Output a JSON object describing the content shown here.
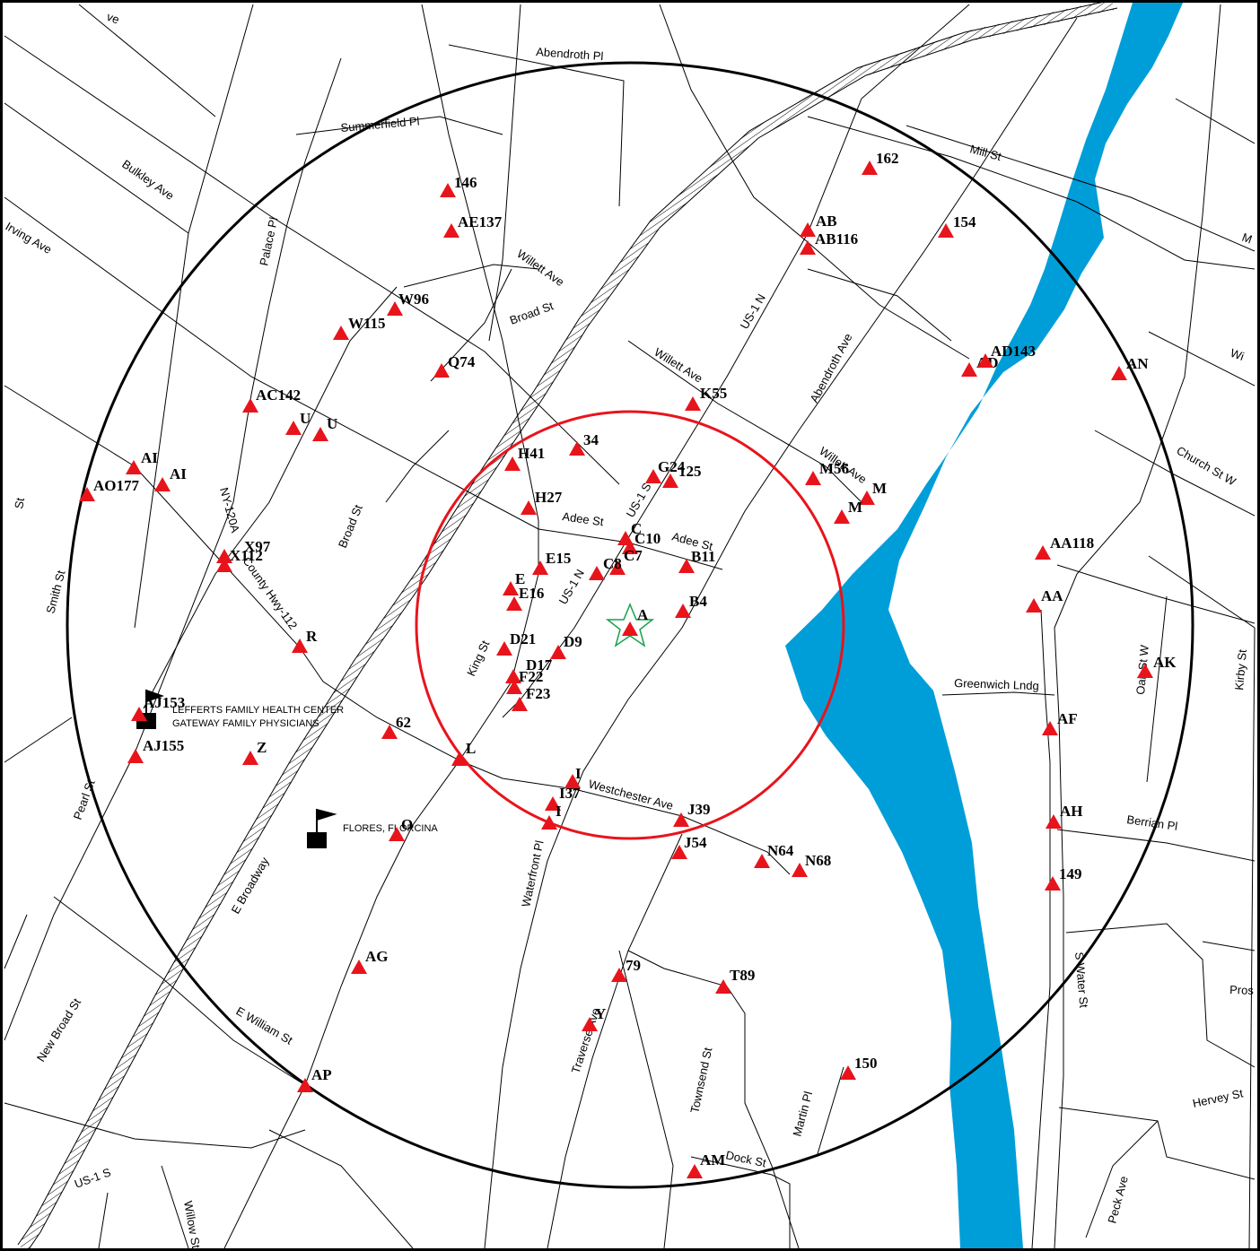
{
  "colors": {
    "water": "#009ed8",
    "site_marker": "#e8141c",
    "inner_radius": "#e8141c",
    "outer_radius": "#000000",
    "target_star": "#19a04b",
    "roads": "#000000"
  },
  "icons": {
    "site_marker": "red-triangle-icon",
    "target": "green-star-icon",
    "facility": "flag-icon"
  },
  "streets": [
    {
      "id": "ve",
      "text": "ve"
    },
    {
      "id": "abendroth-pl",
      "text": "Abendroth Pl"
    },
    {
      "id": "summerfield-pl",
      "text": "Summerfield Pl"
    },
    {
      "id": "bulkley-ave",
      "text": "Bulkley Ave"
    },
    {
      "id": "irving-ave",
      "text": "Irving Ave"
    },
    {
      "id": "palace-pl",
      "text": "Palace Pl"
    },
    {
      "id": "willett-ave-1",
      "text": "Willett Ave"
    },
    {
      "id": "broad-st-1",
      "text": "Broad St"
    },
    {
      "id": "mill-st",
      "text": "Mill St"
    },
    {
      "id": "m-edge",
      "text": "M"
    },
    {
      "id": "us1n-1",
      "text": "US-1 N"
    },
    {
      "id": "abendroth-ave",
      "text": "Abendroth Ave"
    },
    {
      "id": "willett-ave-2",
      "text": "Willett Ave"
    },
    {
      "id": "wi-edge",
      "text": "Wi"
    },
    {
      "id": "church-st-w",
      "text": "Church St W"
    },
    {
      "id": "willett-ave-3",
      "text": "Willett Ave"
    },
    {
      "id": "st-edge",
      "text": "St"
    },
    {
      "id": "smith-st",
      "text": "Smith St"
    },
    {
      "id": "ny-120a",
      "text": "NY-120A"
    },
    {
      "id": "broad-st-2",
      "text": "Broad St"
    },
    {
      "id": "us1s-1",
      "text": "US-1 S"
    },
    {
      "id": "adee-st-1",
      "text": "Adee St"
    },
    {
      "id": "adee-st-2",
      "text": "Adee St"
    },
    {
      "id": "county-hwy",
      "text": "County Hwy-112"
    },
    {
      "id": "us1n-2",
      "text": "US-1 N"
    },
    {
      "id": "king-st",
      "text": "King St"
    },
    {
      "id": "greenwich-lndg",
      "text": "Greenwich Lndg"
    },
    {
      "id": "oak-st-w",
      "text": "Oak St W"
    },
    {
      "id": "kirby-st",
      "text": "Kirby St"
    },
    {
      "id": "pearl-st",
      "text": "Pearl St"
    },
    {
      "id": "westchester-ave",
      "text": "Westchester Ave"
    },
    {
      "id": "berrian-pl",
      "text": "Berrian Pl"
    },
    {
      "id": "e-broadway",
      "text": "E Broadway"
    },
    {
      "id": "waterfront-pl",
      "text": "Waterfront Pl"
    },
    {
      "id": "new-broad-st",
      "text": "New Broad St"
    },
    {
      "id": "s-water-st",
      "text": "S Water St"
    },
    {
      "id": "pros",
      "text": "Pros"
    },
    {
      "id": "e-william-st",
      "text": "E William St"
    },
    {
      "id": "traverse-ave",
      "text": "Traverse Ave"
    },
    {
      "id": "townsend-st",
      "text": "Townsend St"
    },
    {
      "id": "martin-pl",
      "text": "Martin Pl"
    },
    {
      "id": "hervey-st",
      "text": "Hervey St"
    },
    {
      "id": "dock-st",
      "text": "Dock St"
    },
    {
      "id": "peck-ave",
      "text": "Peck Ave"
    },
    {
      "id": "us1s-2",
      "text": "US-1 S"
    },
    {
      "id": "willow-st",
      "text": "Willow St"
    }
  ],
  "sites": [
    {
      "id": "146",
      "text": "146"
    },
    {
      "id": "AE137",
      "text": "AE137"
    },
    {
      "id": "162",
      "text": "162"
    },
    {
      "id": "AB",
      "text": "AB"
    },
    {
      "id": "AB116",
      "text": "AB116"
    },
    {
      "id": "154",
      "text": "154"
    },
    {
      "id": "W96",
      "text": "W96"
    },
    {
      "id": "W115",
      "text": "W115"
    },
    {
      "id": "Q74",
      "text": "Q74"
    },
    {
      "id": "AD",
      "text": "AD"
    },
    {
      "id": "AD143",
      "text": "AD143"
    },
    {
      "id": "AN",
      "text": "AN"
    },
    {
      "id": "AC142",
      "text": "AC142"
    },
    {
      "id": "K55",
      "text": "K55"
    },
    {
      "id": "U1",
      "text": "U"
    },
    {
      "id": "U2",
      "text": "U"
    },
    {
      "id": "H41",
      "text": "H41"
    },
    {
      "id": "34",
      "text": "34"
    },
    {
      "id": "AI1",
      "text": "AI"
    },
    {
      "id": "AI2",
      "text": "AI"
    },
    {
      "id": "AO177",
      "text": "AO177"
    },
    {
      "id": "G24",
      "text": "G24"
    },
    {
      "id": "125",
      "text": "125"
    },
    {
      "id": "M56",
      "text": "M56"
    },
    {
      "id": "M1",
      "text": "M"
    },
    {
      "id": "M2",
      "text": "M"
    },
    {
      "id": "H27",
      "text": "H27"
    },
    {
      "id": "C",
      "text": "C"
    },
    {
      "id": "C10",
      "text": "C10"
    },
    {
      "id": "X97",
      "text": "X97"
    },
    {
      "id": "X112",
      "text": "X112"
    },
    {
      "id": "AA118",
      "text": "AA118"
    },
    {
      "id": "E15",
      "text": "E15"
    },
    {
      "id": "C7",
      "text": "C7"
    },
    {
      "id": "C8",
      "text": "C8"
    },
    {
      "id": "B11",
      "text": "B11"
    },
    {
      "id": "E",
      "text": "E"
    },
    {
      "id": "E16",
      "text": "E16"
    },
    {
      "id": "AA",
      "text": "AA"
    },
    {
      "id": "B4",
      "text": "B4"
    },
    {
      "id": "A",
      "text": "A"
    },
    {
      "id": "R",
      "text": "R"
    },
    {
      "id": "D21",
      "text": "D21"
    },
    {
      "id": "D9",
      "text": "D9"
    },
    {
      "id": "AK",
      "text": "AK"
    },
    {
      "id": "D17",
      "text": "D17"
    },
    {
      "id": "F22",
      "text": "F22"
    },
    {
      "id": "F23",
      "text": "F23"
    },
    {
      "id": "AJ153",
      "text": "AJ153"
    },
    {
      "id": "62",
      "text": "62"
    },
    {
      "id": "AF",
      "text": "AF"
    },
    {
      "id": "AJ155",
      "text": "AJ155"
    },
    {
      "id": "Z",
      "text": "Z"
    },
    {
      "id": "L",
      "text": "L"
    },
    {
      "id": "I1",
      "text": "I"
    },
    {
      "id": "I37",
      "text": "I37"
    },
    {
      "id": "I2",
      "text": "I"
    },
    {
      "id": "J39",
      "text": "J39"
    },
    {
      "id": "AH",
      "text": "AH"
    },
    {
      "id": "O",
      "text": "O"
    },
    {
      "id": "J54",
      "text": "J54"
    },
    {
      "id": "N64",
      "text": "N64"
    },
    {
      "id": "N68",
      "text": "N68"
    },
    {
      "id": "149",
      "text": "149"
    },
    {
      "id": "AG",
      "text": "AG"
    },
    {
      "id": "79",
      "text": "79"
    },
    {
      "id": "T89",
      "text": "T89"
    },
    {
      "id": "Y",
      "text": "Y"
    },
    {
      "id": "150",
      "text": "150"
    },
    {
      "id": "AP",
      "text": "AP"
    },
    {
      "id": "AM",
      "text": "AM"
    }
  ],
  "facilities": [
    {
      "id": "lefferts",
      "lines": [
        "LEFFERTS FAMILY HEALTH CENTER",
        "GATEWAY FAMILY PHYSICIANS"
      ]
    },
    {
      "id": "flores",
      "lines": [
        "FLORES, FLORCINA"
      ]
    }
  ]
}
